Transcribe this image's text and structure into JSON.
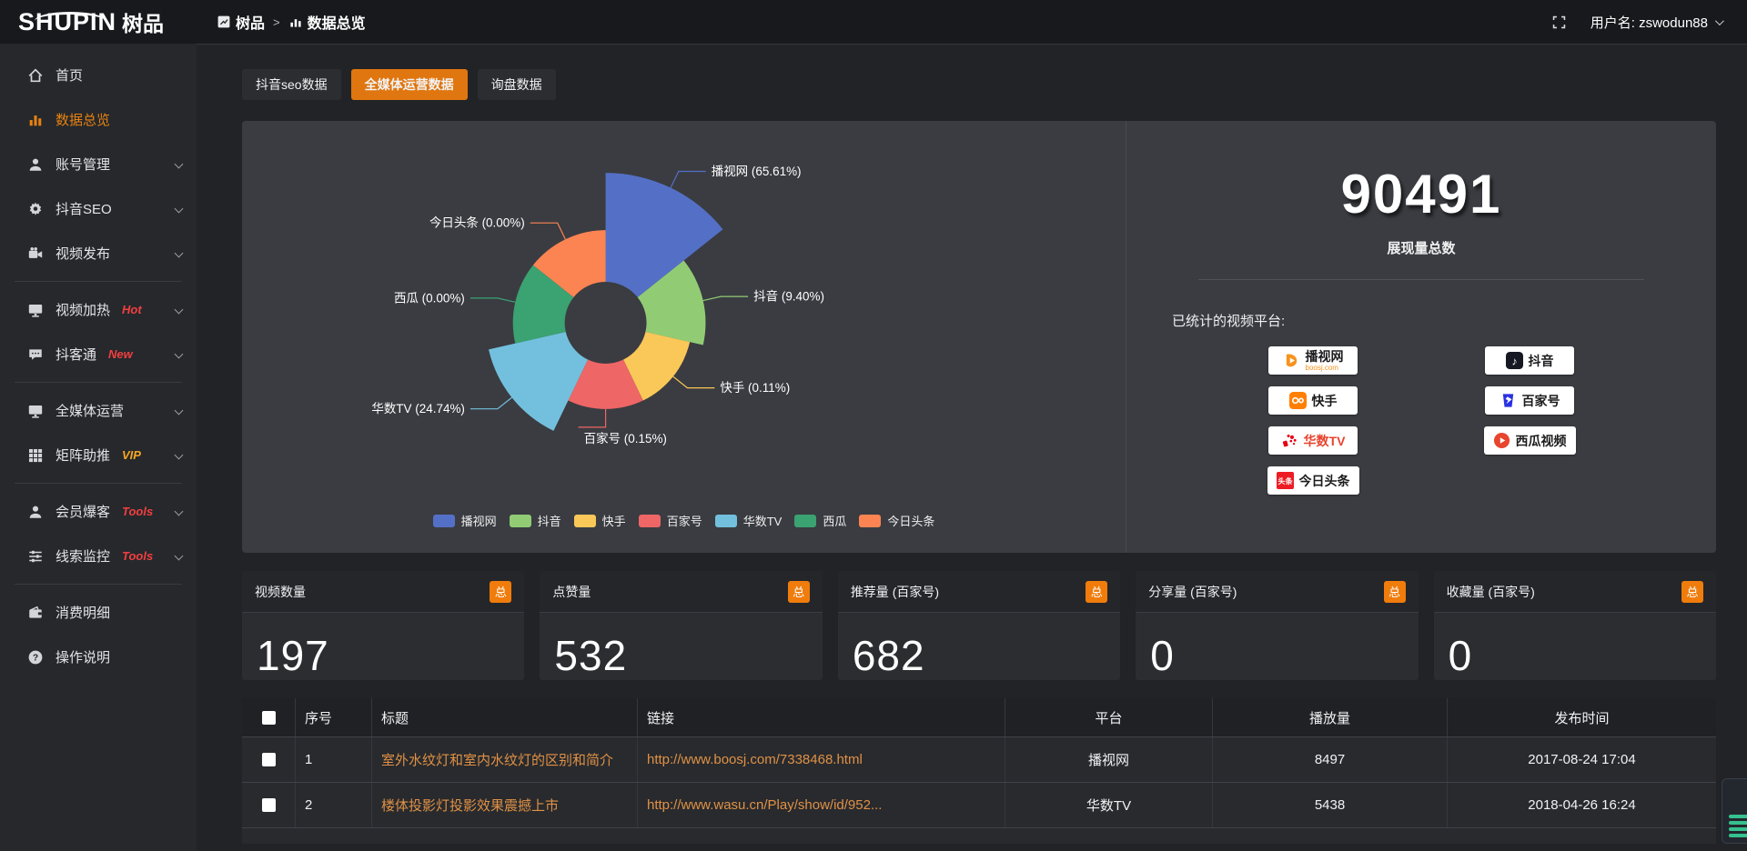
{
  "brand": {
    "logo_en": "SHUPIN",
    "logo_cn": "树品"
  },
  "topbar": {
    "breadcrumb_root": "树品",
    "breadcrumb_sep": ">",
    "breadcrumb_current": "数据总览",
    "username": "用户名: zswodun88"
  },
  "sidebar": {
    "items": [
      {
        "icon": "home",
        "label": "首页"
      },
      {
        "icon": "chart",
        "label": "数据总览",
        "active": true
      },
      {
        "icon": "user",
        "label": "账号管理",
        "chevron": true
      },
      {
        "icon": "gear",
        "label": "抖音SEO",
        "chevron": true
      },
      {
        "icon": "video",
        "label": "视频发布",
        "chevron": true,
        "divider_after": true
      },
      {
        "icon": "monitor",
        "label": "视频加热",
        "tag": "Hot",
        "tag_color": "#f23f3f",
        "chevron": true
      },
      {
        "icon": "chat",
        "label": "抖客通",
        "tag": "New",
        "tag_color": "#f23f3f",
        "chevron": true,
        "divider_after": true
      },
      {
        "icon": "monitor",
        "label": "全媒体运营",
        "chevron": true
      },
      {
        "icon": "grid",
        "label": "矩阵助推",
        "tag": "VIP",
        "tag_color": "#f5a623",
        "chevron": true,
        "divider_after": true
      },
      {
        "icon": "user",
        "label": "会员爆客",
        "tag": "Tools",
        "tag_color": "#f23f3f",
        "chevron": true
      },
      {
        "icon": "sliders",
        "label": "线索监控",
        "tag": "Tools",
        "tag_color": "#f23f3f",
        "chevron": true,
        "divider_after": true
      },
      {
        "icon": "wallet",
        "label": "消费明细"
      },
      {
        "icon": "help",
        "label": "操作说明"
      }
    ]
  },
  "tabs": [
    {
      "label": "抖音seo数据",
      "active": false
    },
    {
      "label": "全媒体运营数据",
      "active": true
    },
    {
      "label": "询盘数据",
      "active": false
    }
  ],
  "chart_data": {
    "type": "pie",
    "subtype": "nightingale-rose",
    "labels": [
      "播视网",
      "抖音",
      "快手",
      "百家号",
      "华数TV",
      "西瓜",
      "今日头条"
    ],
    "percents": [
      65.61,
      9.4,
      0.11,
      0.15,
      24.74,
      0.0,
      0.0
    ],
    "colors": [
      "#5470c6",
      "#91cc75",
      "#fac858",
      "#ee6666",
      "#73c0de",
      "#3ba272",
      "#fc8452"
    ],
    "display_radii": [
      165,
      110,
      95,
      95,
      132,
      102,
      102
    ],
    "inner_radius": 45,
    "legend": [
      "播视网",
      "抖音",
      "快手",
      "百家号",
      "华数TV",
      "西瓜",
      "今日头条"
    ],
    "legend_position": "bottom"
  },
  "summary": {
    "total_value": "90491",
    "total_label": "展现量总数",
    "platforms_title": "已统计的视频平台:",
    "platforms": [
      {
        "name": "播视网",
        "sub": "boosj.com",
        "icon": "boosj"
      },
      {
        "name": "抖音",
        "icon": "douyin"
      },
      {
        "name": "快手",
        "icon": "kuaishou"
      },
      {
        "name": "百家号",
        "icon": "baijiahao"
      },
      {
        "name": "华数TV",
        "icon": "wasu",
        "name_color": "#e8442e"
      },
      {
        "name": "西瓜视频",
        "icon": "xigua"
      },
      {
        "name": "今日头条",
        "icon": "toutiao"
      }
    ]
  },
  "stat_cards": [
    {
      "title": "视频数量",
      "badge": "总",
      "value": "197"
    },
    {
      "title": "点赞量",
      "badge": "总",
      "value": "532"
    },
    {
      "title": "推荐量 (百家号)",
      "badge": "总",
      "value": "682"
    },
    {
      "title": "分享量 (百家号)",
      "badge": "总",
      "value": "0"
    },
    {
      "title": "收藏量 (百家号)",
      "badge": "总",
      "value": "0"
    }
  ],
  "table": {
    "headers": [
      "序号",
      "标题",
      "链接",
      "平台",
      "播放量",
      "发布时间"
    ],
    "rows": [
      {
        "num": "1",
        "title": "室外水纹灯和室内水纹灯的区别和简介",
        "link": "http://www.boosj.com/7338468.html",
        "platform": "播视网",
        "plays": "8497",
        "time": "2017-08-24 17:04"
      },
      {
        "num": "2",
        "title": "楼体投影灯投影效果震撼上市",
        "link": "http://www.wasu.cn/Play/show/id/952...",
        "platform": "华数TV",
        "plays": "5438",
        "time": "2018-04-26 16:24"
      }
    ]
  }
}
